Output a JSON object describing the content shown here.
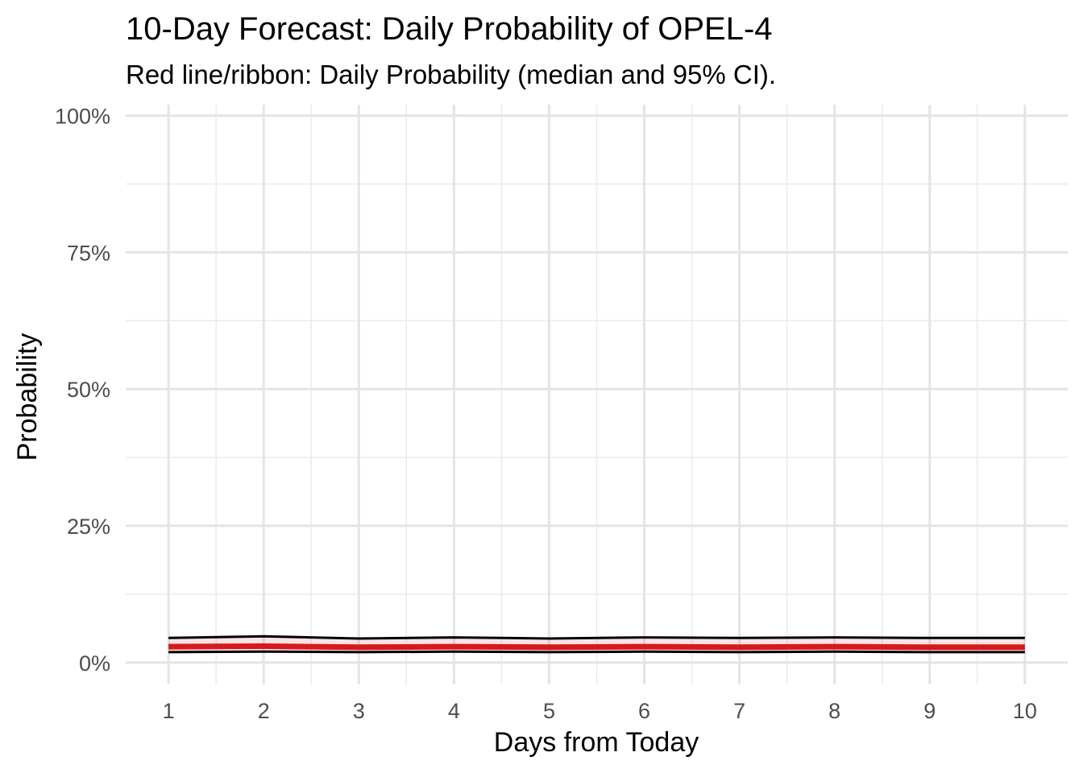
{
  "chart_data": {
    "type": "line",
    "title": "10-Day Forecast: Daily Probability of OPEL-4",
    "subtitle": "Red line/ribbon: Daily Probability (median and 95% CI).",
    "xlabel": "Days from Today",
    "ylabel": "Probability",
    "x": [
      1,
      2,
      3,
      4,
      5,
      6,
      7,
      8,
      9,
      10
    ],
    "xlim": [
      0.55,
      10.45
    ],
    "ylim": [
      -0.04,
      1.02
    ],
    "x_ticks": [
      1,
      2,
      3,
      4,
      5,
      6,
      7,
      8,
      9,
      10
    ],
    "x_tick_labels": [
      "1",
      "2",
      "3",
      "4",
      "5",
      "6",
      "7",
      "8",
      "9",
      "10"
    ],
    "y_ticks": [
      0,
      0.25,
      0.5,
      0.75,
      1.0
    ],
    "y_tick_labels": [
      "0%",
      "25%",
      "50%",
      "75%",
      "100%"
    ],
    "grid": true,
    "series": [
      {
        "role": "upper",
        "values": [
          0.045,
          0.048,
          0.044,
          0.046,
          0.044,
          0.046,
          0.045,
          0.046,
          0.045,
          0.045
        ],
        "color": "#000000"
      },
      {
        "role": "median",
        "values": [
          0.029,
          0.03,
          0.028,
          0.029,
          0.028,
          0.029,
          0.028,
          0.029,
          0.028,
          0.028
        ],
        "color": "#d7191c"
      },
      {
        "role": "lower",
        "values": [
          0.019,
          0.02,
          0.019,
          0.02,
          0.019,
          0.02,
          0.019,
          0.02,
          0.019,
          0.019
        ],
        "color": "#000000"
      }
    ],
    "ribbon_color": "#d7191c"
  }
}
